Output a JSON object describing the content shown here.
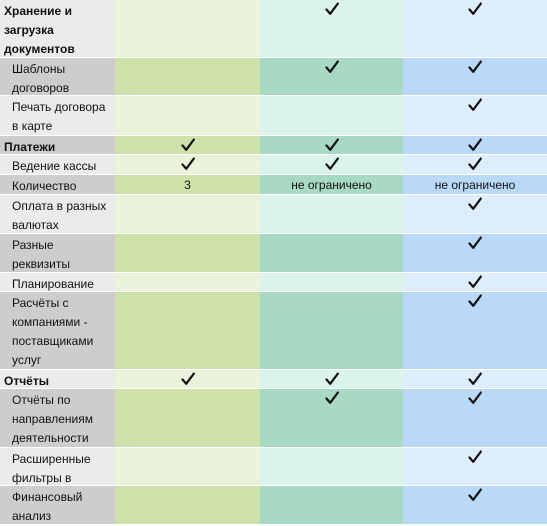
{
  "rows": [
    {
      "kind": "section",
      "shade": "odd",
      "label": "Хранение и загрузка документов",
      "values": [
        "",
        "check",
        "check"
      ]
    },
    {
      "kind": "sub",
      "shade": "even",
      "label": "Шаблоны договоров",
      "values": [
        "",
        "check",
        "check"
      ]
    },
    {
      "kind": "sub",
      "shade": "odd",
      "label": "Печать договора в карте",
      "values": [
        "",
        "",
        "check"
      ]
    },
    {
      "kind": "section",
      "shade": "even",
      "label": "Платежи",
      "values": [
        "check",
        "check",
        "check"
      ]
    },
    {
      "kind": "sub",
      "shade": "odd",
      "label": "Ведение кассы",
      "values": [
        "check",
        "check",
        "check"
      ]
    },
    {
      "kind": "sub",
      "shade": "even",
      "label": "Количество счетов",
      "values": [
        "3",
        "не ограничено",
        "не ограничено"
      ]
    },
    {
      "kind": "sub",
      "shade": "odd",
      "label": "Оплата в разных валютах",
      "values": [
        "",
        "",
        "check"
      ]
    },
    {
      "kind": "sub",
      "shade": "even",
      "label": "Разные реквизиты организации",
      "values": [
        "",
        "",
        "check"
      ]
    },
    {
      "kind": "sub",
      "shade": "odd",
      "label": "Планирование",
      "values": [
        "",
        "",
        "check"
      ]
    },
    {
      "kind": "sub",
      "shade": "even",
      "label": "Расчёты с компаниями - поставщиками услуг",
      "values": [
        "",
        "",
        "check"
      ]
    },
    {
      "kind": "section",
      "shade": "odd",
      "label": "Отчёты",
      "values": [
        "check",
        "check",
        "check"
      ]
    },
    {
      "kind": "sub",
      "shade": "even",
      "label": "Отчёты по направлениям деятельности",
      "values": [
        "",
        "check",
        "check"
      ]
    },
    {
      "kind": "sub",
      "shade": "odd",
      "label": "Расширенные фильтры в отчётах",
      "values": [
        "",
        "",
        "check"
      ]
    },
    {
      "kind": "sub",
      "shade": "even",
      "label": "Финансовый анализ",
      "values": [
        "",
        "",
        "check"
      ]
    }
  ],
  "icons": {
    "check": "check-icon"
  }
}
